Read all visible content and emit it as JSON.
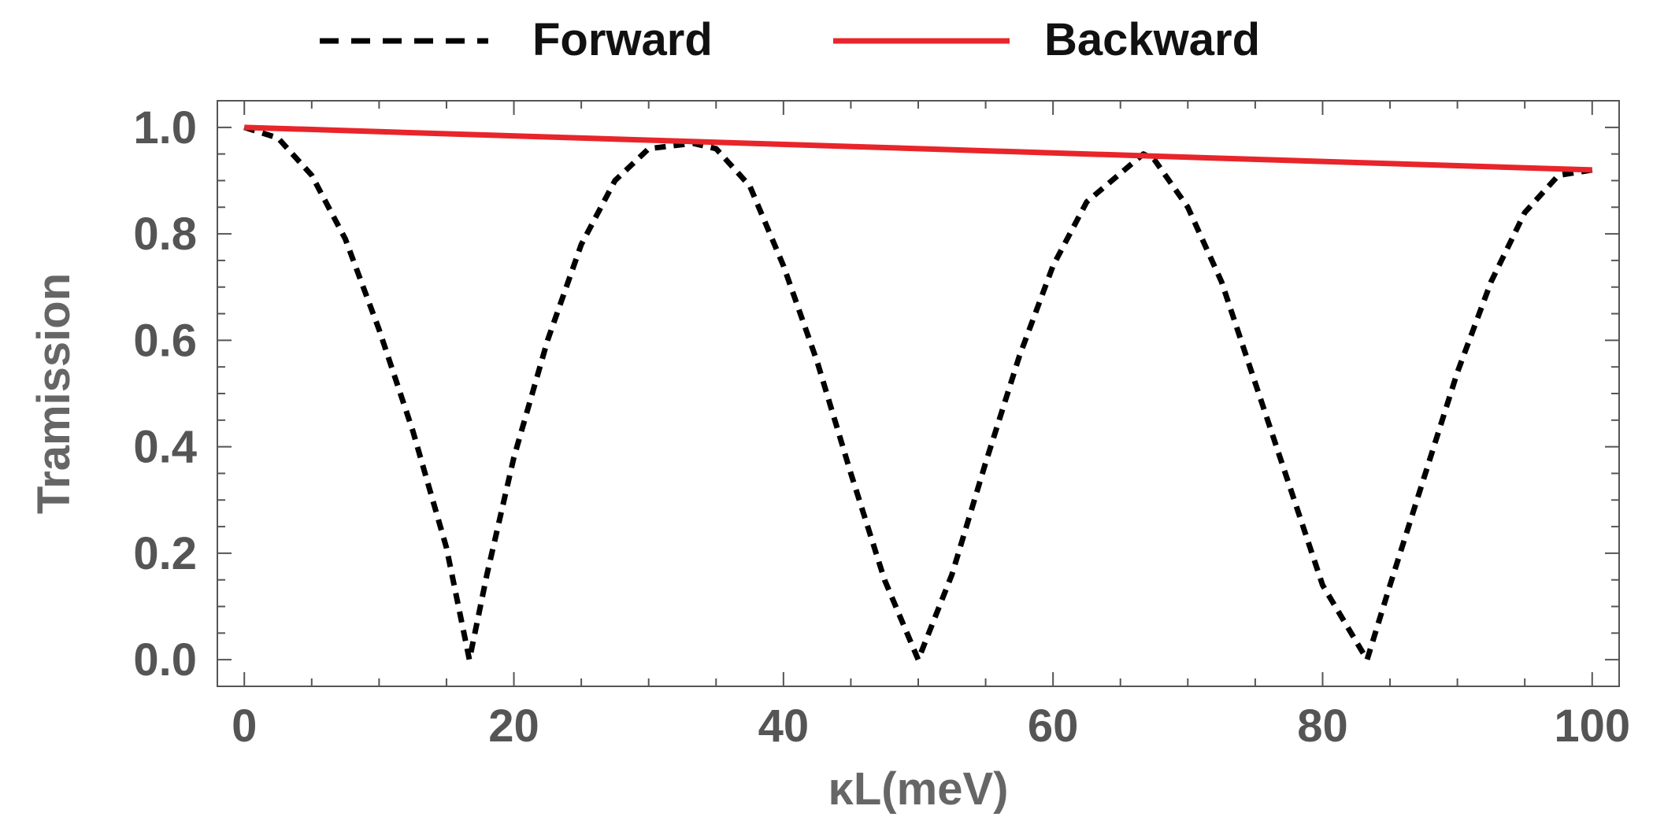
{
  "chart_data": {
    "type": "line",
    "xlabel": "κL(meV)",
    "ylabel": "Tramission",
    "xlim": [
      -2,
      102
    ],
    "ylim": [
      -0.05,
      1.05
    ],
    "x_ticks": [
      0,
      20,
      40,
      60,
      80,
      100
    ],
    "x_tick_labels": [
      "0",
      "20",
      "40",
      "60",
      "80",
      "100"
    ],
    "y_ticks": [
      0.0,
      0.2,
      0.4,
      0.6,
      0.8,
      1.0
    ],
    "y_tick_labels": [
      "0.0",
      "0.2",
      "0.4",
      "0.6",
      "0.8",
      "1.0"
    ],
    "grid": false,
    "legend_position": "top-center",
    "series": [
      {
        "name": "Forward",
        "color": "#000000",
        "style": "dashed",
        "x": [
          0,
          2.5,
          5,
          7.5,
          10,
          12.5,
          15,
          16.7,
          18,
          20,
          22.5,
          25,
          27.5,
          30,
          33.3,
          35,
          37.5,
          40,
          42.5,
          45,
          47.5,
          50,
          52.5,
          55,
          57.5,
          60,
          62.5,
          66.7,
          67.5,
          70,
          72.5,
          75,
          77.5,
          80,
          83.3,
          85,
          87.5,
          90,
          92.5,
          95,
          97.5,
          100
        ],
        "y": [
          1.0,
          0.98,
          0.91,
          0.79,
          0.62,
          0.43,
          0.21,
          0.0,
          0.16,
          0.38,
          0.6,
          0.78,
          0.9,
          0.96,
          0.97,
          0.96,
          0.89,
          0.74,
          0.56,
          0.35,
          0.15,
          0.0,
          0.16,
          0.37,
          0.57,
          0.74,
          0.86,
          0.95,
          0.94,
          0.85,
          0.71,
          0.52,
          0.33,
          0.14,
          0.0,
          0.14,
          0.34,
          0.54,
          0.71,
          0.84,
          0.91,
          0.92
        ]
      },
      {
        "name": "Backward",
        "color": "#e8252a",
        "style": "solid",
        "x": [
          0,
          100
        ],
        "y": [
          1.0,
          0.92
        ]
      }
    ]
  }
}
